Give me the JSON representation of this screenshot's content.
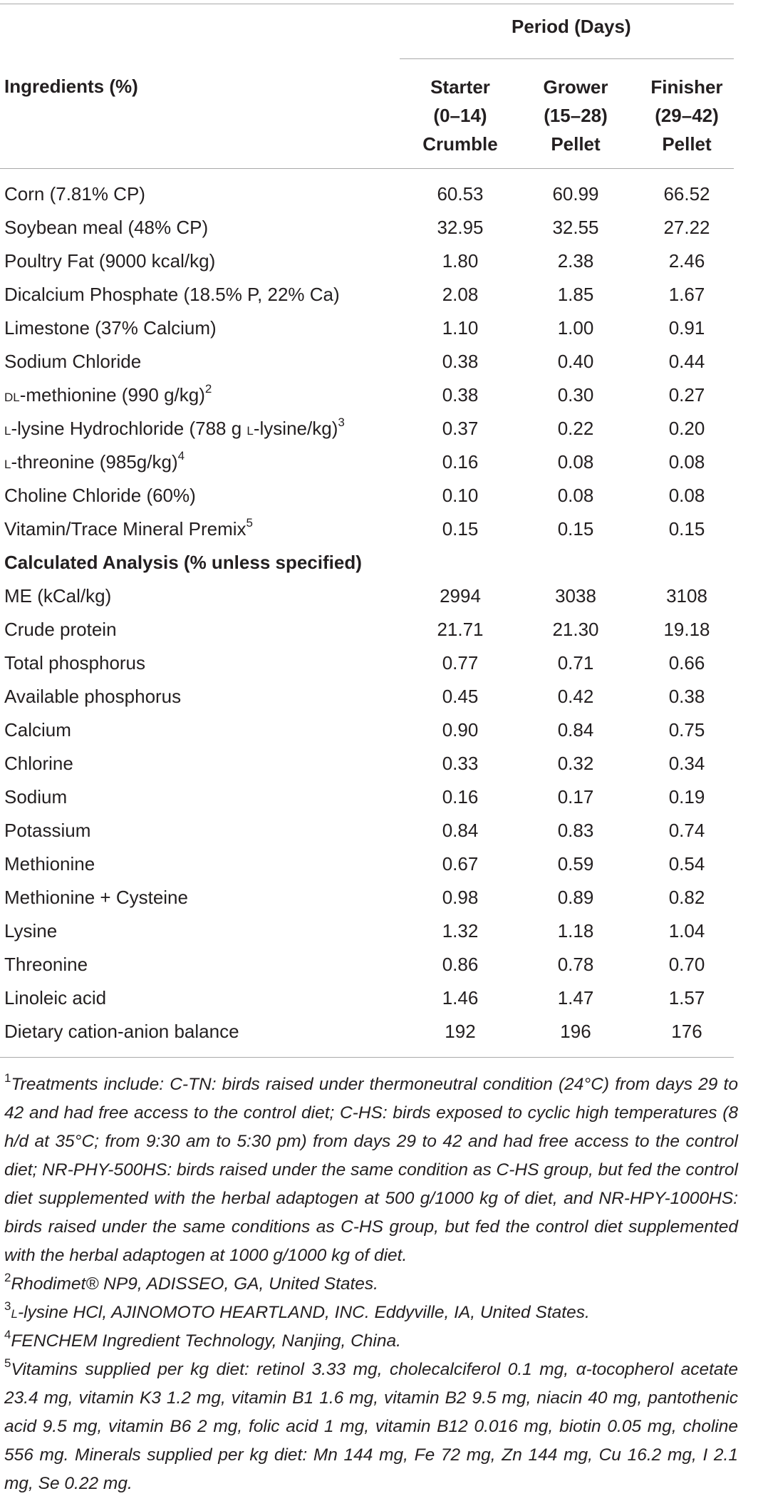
{
  "header": {
    "ingredients_label": "Ingredients (%)",
    "period_label": "Period (Days)",
    "columns": [
      {
        "line1": "Starter",
        "line2": "(0–14)",
        "line3": "Crumble"
      },
      {
        "line1": "Grower",
        "line2": "(15–28)",
        "line3": "Pellet"
      },
      {
        "line1": "Finisher",
        "line2": "(29–42)",
        "line3": "Pellet"
      }
    ]
  },
  "ingredients": [
    {
      "label": "Corn (7.81% CP)",
      "values": [
        "60.53",
        "60.99",
        "66.52"
      ]
    },
    {
      "label": "Soybean meal (48% CP)",
      "values": [
        "32.95",
        "32.55",
        "27.22"
      ]
    },
    {
      "label": "Poultry Fat (9000 kcal/kg)",
      "values": [
        "1.80",
        "2.38",
        "2.46"
      ]
    },
    {
      "label": "Dicalcium Phosphate (18.5% P, 22% Ca)",
      "values": [
        "2.08",
        "1.85",
        "1.67"
      ]
    },
    {
      "label": "Limestone (37% Calcium)",
      "values": [
        "1.10",
        "1.00",
        "0.91"
      ]
    },
    {
      "label": "Sodium Chloride",
      "values": [
        "0.38",
        "0.40",
        "0.44"
      ]
    },
    {
      "label_prefix_sc": "dl",
      "label": "-methionine (990 g/kg)",
      "sup": "2",
      "values": [
        "0.38",
        "0.30",
        "0.27"
      ]
    },
    {
      "label_prefix_sc": "l",
      "label": "-lysine Hydrochloride (788 g ",
      "label_mid_sc": "l",
      "label_tail": "-lysine/kg)",
      "sup": "3",
      "values": [
        "0.37",
        "0.22",
        "0.20"
      ]
    },
    {
      "label_prefix_sc": "l",
      "label": "-threonine (985g/kg)",
      "sup": "4",
      "values": [
        "0.16",
        "0.08",
        "0.08"
      ]
    },
    {
      "label": "Choline Chloride (60%)",
      "values": [
        "0.10",
        "0.08",
        "0.08"
      ]
    },
    {
      "label": "Vitamin/Trace Mineral Premix",
      "sup": "5",
      "values": [
        "0.15",
        "0.15",
        "0.15"
      ]
    }
  ],
  "analysis_heading": "Calculated Analysis (% unless specified)",
  "analysis": [
    {
      "label": "ME (kCal/kg)",
      "values": [
        "2994",
        "3038",
        "3108"
      ]
    },
    {
      "label": "Crude protein",
      "values": [
        "21.71",
        "21.30",
        "19.18"
      ]
    },
    {
      "label": "Total phosphorus",
      "values": [
        "0.77",
        "0.71",
        "0.66"
      ]
    },
    {
      "label": "Available phosphorus",
      "values": [
        "0.45",
        "0.42",
        "0.38"
      ]
    },
    {
      "label": "Calcium",
      "values": [
        "0.90",
        "0.84",
        "0.75"
      ]
    },
    {
      "label": "Chlorine",
      "values": [
        "0.33",
        "0.32",
        "0.34"
      ]
    },
    {
      "label": "Sodium",
      "values": [
        "0.16",
        "0.17",
        "0.19"
      ]
    },
    {
      "label": "Potassium",
      "values": [
        "0.84",
        "0.83",
        "0.74"
      ]
    },
    {
      "label": "Methionine",
      "values": [
        "0.67",
        "0.59",
        "0.54"
      ]
    },
    {
      "label": "Methionine + Cysteine",
      "values": [
        "0.98",
        "0.89",
        "0.82"
      ]
    },
    {
      "label": "Lysine",
      "values": [
        "1.32",
        "1.18",
        "1.04"
      ]
    },
    {
      "label": "Threonine",
      "values": [
        "0.86",
        "0.78",
        "0.70"
      ]
    },
    {
      "label": "Linoleic acid",
      "values": [
        "1.46",
        "1.47",
        "1.57"
      ]
    },
    {
      "label": "Dietary cation-anion balance",
      "values": [
        "192",
        "196",
        "176"
      ]
    }
  ],
  "footnotes": {
    "n1_mark": "1",
    "n1_text": "Treatments include: C-TN: birds raised under thermoneutral condition (24°C) from days 29 to 42 and had free access to the control diet; C-HS: birds exposed to cyclic high temperatures (8 h/d at 35°C; from 9:30 am to 5:30 pm) from days 29 to 42 and had free access to the control diet; NR-PHY-500HS: birds raised under the same condition as C-HS group, but fed the control diet supplemented with the herbal adaptogen at 500 g/1000 kg of diet, and NR-HPY-1000HS: birds raised under the same conditions as C-HS group, but fed the control diet supplemented with the herbal adaptogen at 1000 g/1000 kg of diet.",
    "n2_mark": "2",
    "n2_text": "Rhodimet® NP9, ADISSEO, GA, United States.",
    "n3_mark": "3",
    "n3_sc": "l",
    "n3_text": "-lysine HCl, AJINOMOTO HEARTLAND, INC. Eddyville, IA, United States.",
    "n4_mark": "4",
    "n4_text": "FENCHEM Ingredient Technology, Nanjing, China.",
    "n5_mark": "5",
    "n5_text": "Vitamins supplied per kg diet: retinol 3.33 mg, cholecalciferol 0.1 mg, α-tocopherol acetate 23.4 mg, vitamin K3 1.2 mg, vitamin B1 1.6 mg, vitamin B2 9.5 mg, niacin 40 mg, pantothenic acid 9.5 mg, vitamin B6 2 mg, folic acid 1 mg, vitamin B12 0.016 mg, biotin 0.05 mg, choline 556 mg. Minerals supplied per kg diet: Mn 144 mg, Fe 72 mg, Zn 144 mg, Cu 16.2 mg, I 2.1 mg, Se 0.22 mg."
  }
}
